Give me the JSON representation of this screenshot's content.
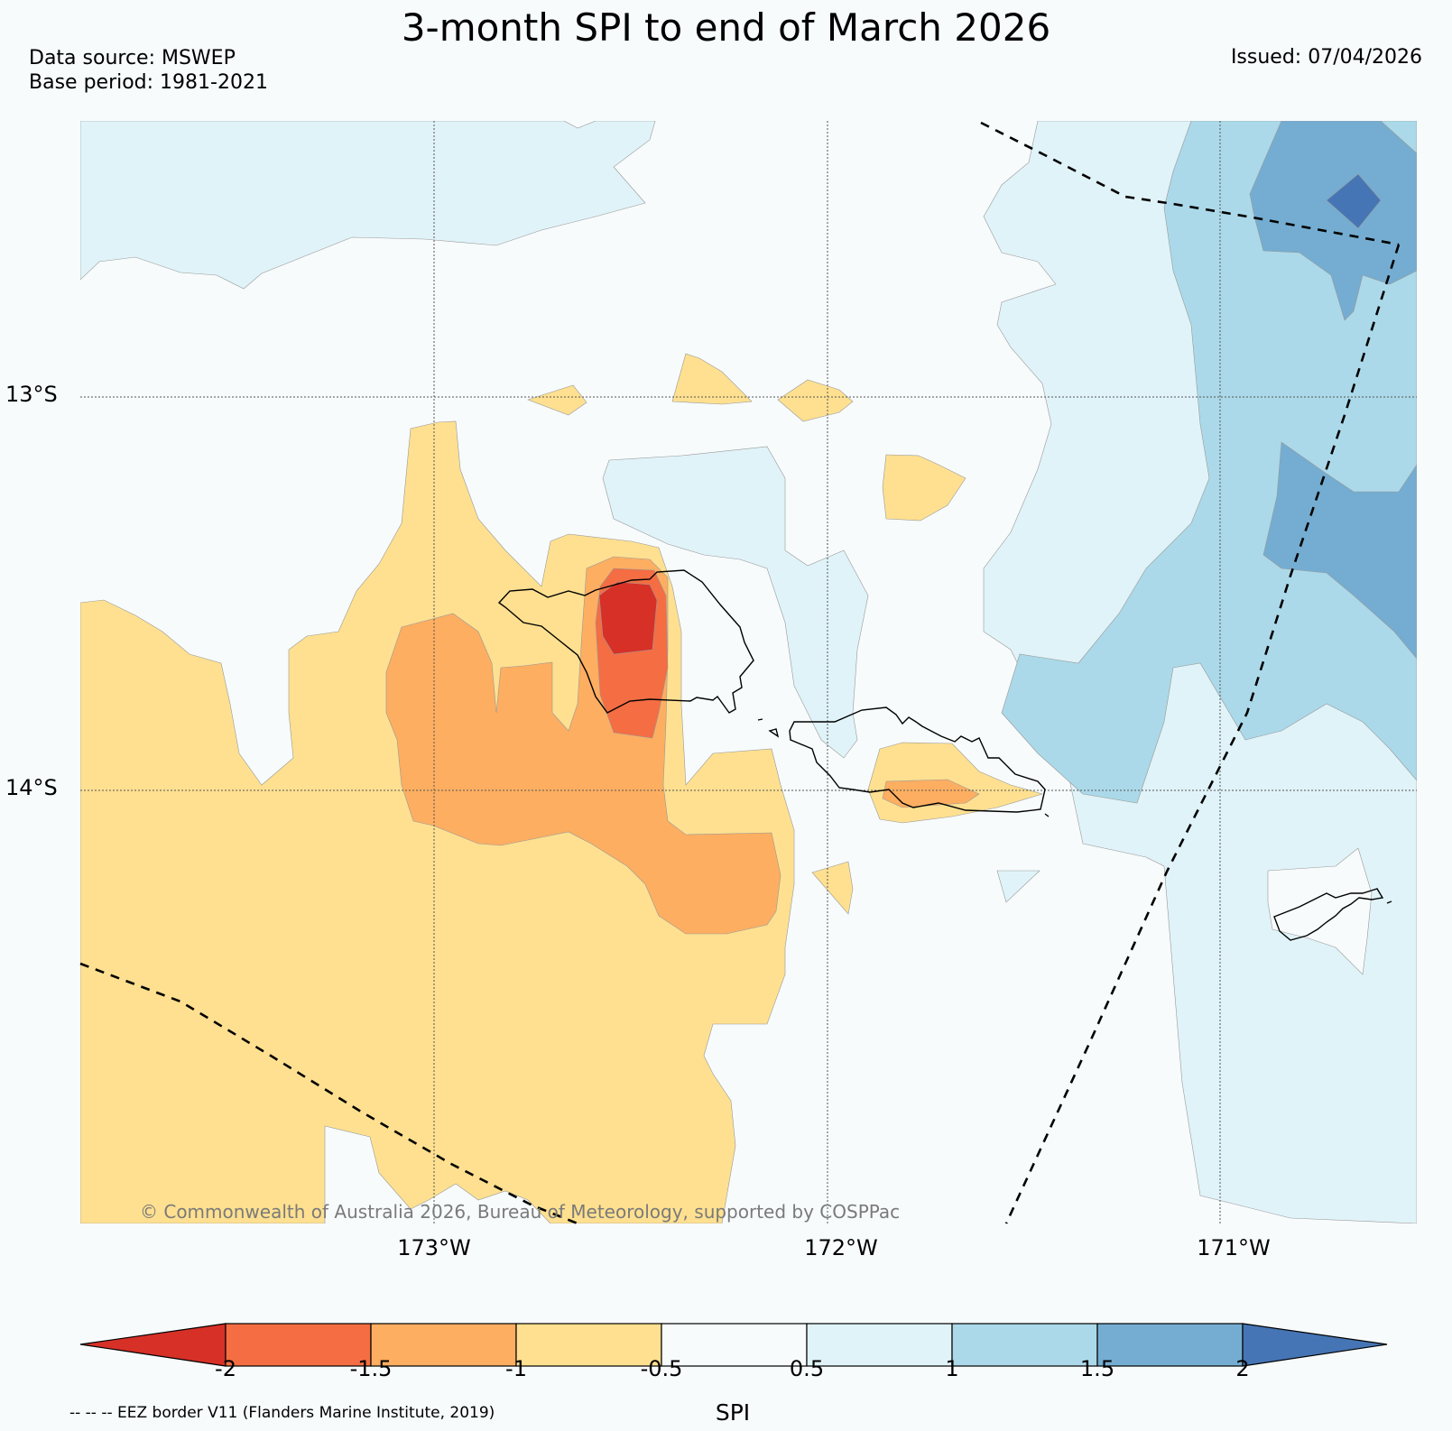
{
  "title": "3-month SPI to end of March 2026",
  "data_source": "Data source: MSWEP",
  "base_period": "Base period: 1981-2021",
  "issued": "Issued: 07/04/2026",
  "latitude_labels": [
    "13°S",
    "14°S"
  ],
  "longitude_labels": [
    "173°W",
    "172°W",
    "171°W"
  ],
  "copyright": "© Commonwealth of Australia 2026, Bureau of Meteorology, supported by COSPPac",
  "colorbar": {
    "label": "SPI",
    "ticks": [
      "-2",
      "-1.5",
      "-1",
      "-0.5",
      "0.5",
      "1",
      "1.5",
      "2"
    ],
    "colors": [
      "#d73027",
      "#f46d43",
      "#fdae61",
      "#fee090",
      "#f7fbfc",
      "#e0f3f8",
      "#abd9e9",
      "#74add1",
      "#4575b4"
    ]
  },
  "eez_note": "-- -- -- EEZ border V11 (Flanders Marine Institute, 2019)"
}
